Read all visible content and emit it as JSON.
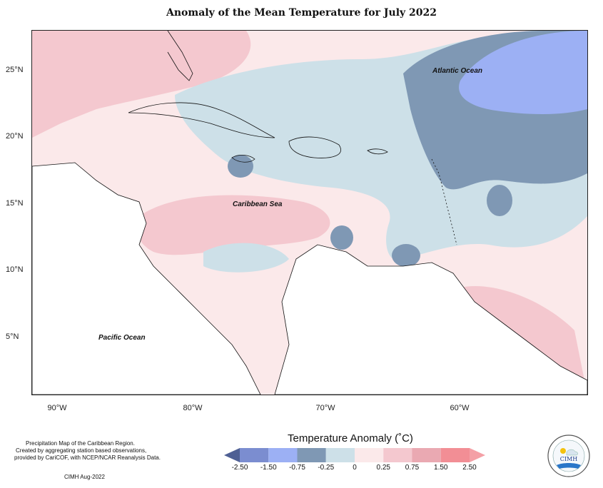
{
  "title": "Anomaly of the Mean Temperature for July 2022",
  "lat_labels": [
    "25°N",
    "20°N",
    "15°N",
    "10°N",
    "5°N"
  ],
  "lon_labels": [
    "90°W",
    "80°W",
    "70°W",
    "60°W"
  ],
  "places": {
    "atlantic": "Atlantic Ocean",
    "caribbean": "Caribbean Sea",
    "pacific": "Pacific Ocean"
  },
  "credits": {
    "line1": "Precipitation Map of the Caribbean Region.",
    "line2": "Created by aggregating station based observations,",
    "line3": "provided by CariCOF, with NCEP/NCAR Reanalysis Data.",
    "line4": "CIMH Aug-2022"
  },
  "legend": {
    "title": "Temperature Anomaly (˚C)",
    "ticks": [
      "-2.50",
      "-1.50",
      "-0.75",
      "-0.25",
      "0",
      "0.25",
      "0.75",
      "1.50",
      "2.50"
    ],
    "colors": [
      "#4f6094",
      "#7b8dd0",
      "#9cb0f4",
      "#7f98b4",
      "#cde0e8",
      "#fbe9ea",
      "#f4c8cf",
      "#eaa9b2",
      "#f28e95",
      "#f4a0a6"
    ]
  },
  "logo": {
    "text": "CIMH"
  }
}
